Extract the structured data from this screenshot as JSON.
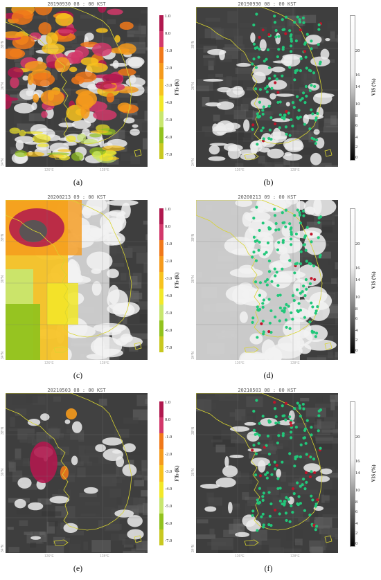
{
  "panels": [
    {
      "id": "a",
      "caption": "(a)",
      "title": "20190930 08 : 00 KST",
      "kind": "ft",
      "lat1": "38°N",
      "lat2": "36°N",
      "lat3": "34°N",
      "lon1": "126°E",
      "lon2": "128°E"
    },
    {
      "id": "b",
      "caption": "(b)",
      "title": "20190930 08 : 00 KST",
      "kind": "vis",
      "lat1": "38°N",
      "lat2": "36°N",
      "lat3": "34°N",
      "lon1": "126°E",
      "lon2": "128°E"
    },
    {
      "id": "c",
      "caption": "(c)",
      "title": "20200213 09 : 00 KST",
      "kind": "ft",
      "lat1": "38°N",
      "lat2": "36°N",
      "lat3": "34°N",
      "lon1": "126°E",
      "lon2": "128°E"
    },
    {
      "id": "d",
      "caption": "(d)",
      "title": "20200213 09 : 00 KST",
      "kind": "vis",
      "lat1": "38°N",
      "lat2": "36°N",
      "lat3": "34°N",
      "lon1": "126°E",
      "lon2": "128°E"
    },
    {
      "id": "e",
      "caption": "(e)",
      "title": "20210503 08 : 00 KST",
      "kind": "ft",
      "lat1": "38°N",
      "lat2": "36°N",
      "lat3": "34°N",
      "lon1": "126°E",
      "lon2": "128°E"
    },
    {
      "id": "f",
      "caption": "(f)",
      "title": "20210503 08 : 00 KST",
      "kind": "vis",
      "lat1": "38°N",
      "lat2": "36°N",
      "lat3": "34°N",
      "lon1": "126°E",
      "lon2": "128°E"
    }
  ],
  "ft_colorbar": {
    "title": "FTs (K)",
    "ticks": [
      "1.0",
      "0.0",
      "-1.0",
      "-2.0",
      "-3.0",
      "-4.0",
      "-5.0",
      "-6.0",
      "-7.0"
    ],
    "colors": [
      "#b0184e",
      "#d2386a",
      "#f0781a",
      "#f59a1c",
      "#f7c21e",
      "#f2e828",
      "#c8e66e",
      "#92c21e",
      "#c8c820"
    ]
  },
  "vis_colorbar": {
    "title": "VIS (%)",
    "ticks": [
      "20",
      "16",
      "14",
      "10",
      "8",
      "6",
      "4",
      "2",
      "0"
    ]
  },
  "station_colors": {
    "good": "#22c77a",
    "fog": "#c0142a"
  },
  "coast_color": "#d8d430"
}
